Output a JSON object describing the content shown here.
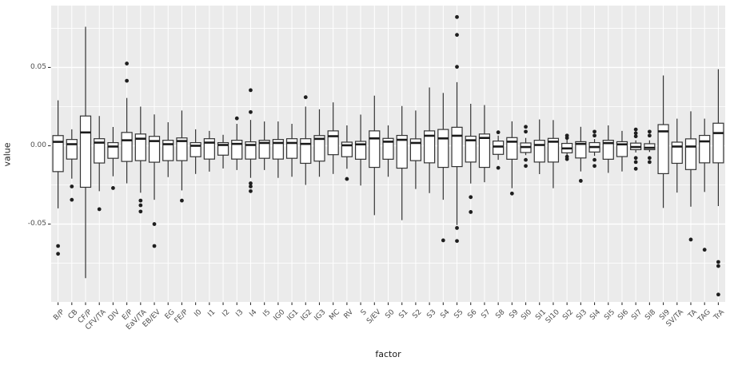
{
  "chart_data": {
    "type": "boxplot",
    "title": "",
    "xlabel": "factor",
    "ylabel": "value",
    "ylim": [
      -0.0997,
      0.0895
    ],
    "grid": true,
    "legend": "none",
    "yticks": [
      {
        "label": "0.05",
        "value": 0.05
      },
      {
        "label": "0.00",
        "value": 0.0
      },
      {
        "label": "-0.05",
        "value": -0.05
      }
    ],
    "yminor": [
      0.075,
      0.025,
      -0.025,
      -0.075
    ],
    "categories": [
      "B/P",
      "CB",
      "CF/P",
      "CFV/TA",
      "DIV",
      "E/P",
      "EaV/TA",
      "EB/EV",
      "EG",
      "FE/P",
      "I0",
      "I1",
      "I2",
      "I3",
      "I4",
      "I5",
      "IG0",
      "IG1",
      "IG2",
      "IG3",
      "MC",
      "RV",
      "S",
      "S/EV",
      "S0",
      "S1",
      "S2",
      "S3",
      "S4",
      "S5",
      "S6",
      "S7",
      "S8",
      "S9",
      "SI0",
      "SI1",
      "SI10",
      "SI2",
      "SI3",
      "SI4",
      "SI5",
      "SI6",
      "SI7",
      "SI8",
      "SI9",
      "SV/TA",
      "TA",
      "TAG",
      "TrA"
    ],
    "boxes": [
      {
        "factor": "B/P",
        "low": -0.04,
        "q1": -0.0165,
        "median": 0.0025,
        "q3": 0.0065,
        "high": 0.029,
        "outliers": [
          -0.064,
          -0.069
        ]
      },
      {
        "factor": "CB",
        "low": -0.021,
        "q1": -0.0085,
        "median": 0.001,
        "q3": 0.004,
        "high": 0.0105,
        "outliers": [
          -0.026,
          -0.0345
        ]
      },
      {
        "factor": "CF/P",
        "low": -0.0845,
        "q1": -0.0265,
        "median": 0.0085,
        "q3": 0.019,
        "high": 0.076,
        "outliers": []
      },
      {
        "factor": "CFV/TA",
        "low": -0.029,
        "q1": -0.011,
        "median": 0.002,
        "q3": 0.0045,
        "high": 0.019,
        "outliers": [
          -0.0405
        ]
      },
      {
        "factor": "DIV",
        "low": -0.0195,
        "q1": -0.008,
        "median": -0.0005,
        "q3": 0.002,
        "high": 0.012,
        "outliers": [
          -0.027
        ]
      },
      {
        "factor": "E/P",
        "low": -0.024,
        "q1": -0.01,
        "median": 0.0035,
        "q3": 0.0085,
        "high": 0.0305,
        "outliers": [
          0.0525,
          0.0415
        ]
      },
      {
        "factor": "EaV/TA",
        "low": -0.03,
        "q1": -0.0095,
        "median": 0.0045,
        "q3": 0.0075,
        "high": 0.025,
        "outliers": [
          -0.035,
          -0.038,
          -0.042
        ]
      },
      {
        "factor": "EB/EV",
        "low": -0.0345,
        "q1": -0.0105,
        "median": 0.003,
        "q3": 0.006,
        "high": 0.02,
        "outliers": [
          -0.05,
          -0.064
        ]
      },
      {
        "factor": "EG",
        "low": -0.02,
        "q1": -0.0095,
        "median": 0.001,
        "q3": 0.0035,
        "high": 0.015,
        "outliers": []
      },
      {
        "factor": "FE/P",
        "low": -0.0285,
        "q1": -0.0095,
        "median": 0.003,
        "q3": 0.005,
        "high": 0.0225,
        "outliers": [
          -0.035
        ]
      },
      {
        "factor": "I0",
        "low": -0.018,
        "q1": -0.007,
        "median": 0.0,
        "q3": 0.002,
        "high": 0.0105,
        "outliers": []
      },
      {
        "factor": "I1",
        "low": -0.0165,
        "q1": -0.0085,
        "median": 0.002,
        "q3": 0.0045,
        "high": 0.0095,
        "outliers": []
      },
      {
        "factor": "I2",
        "low": -0.0145,
        "q1": -0.006,
        "median": 0.0005,
        "q3": 0.002,
        "high": 0.007,
        "outliers": []
      },
      {
        "factor": "I3",
        "low": -0.0155,
        "q1": -0.0085,
        "median": 0.0012,
        "q3": 0.0035,
        "high": 0.014,
        "outliers": [
          0.0175
        ]
      },
      {
        "factor": "I4",
        "low": -0.0205,
        "q1": -0.0085,
        "median": 0.0005,
        "q3": 0.0025,
        "high": 0.0165,
        "outliers": [
          0.0355,
          0.0215,
          -0.024,
          -0.026,
          -0.029
        ]
      },
      {
        "factor": "I5",
        "low": -0.0155,
        "q1": -0.008,
        "median": 0.0018,
        "q3": 0.0035,
        "high": 0.0155,
        "outliers": []
      },
      {
        "factor": "IG0",
        "low": -0.0205,
        "q1": -0.0085,
        "median": 0.0018,
        "q3": 0.004,
        "high": 0.0155,
        "outliers": []
      },
      {
        "factor": "IG1",
        "low": -0.0198,
        "q1": -0.008,
        "median": 0.0018,
        "q3": 0.0045,
        "high": 0.014,
        "outliers": []
      },
      {
        "factor": "IG2",
        "low": -0.025,
        "q1": -0.0112,
        "median": 0.0012,
        "q3": 0.0045,
        "high": 0.025,
        "outliers": [
          0.031
        ]
      },
      {
        "factor": "IG3",
        "low": -0.0198,
        "q1": -0.0098,
        "median": 0.0044,
        "q3": 0.0065,
        "high": 0.0233,
        "outliers": []
      },
      {
        "factor": "MC",
        "low": -0.018,
        "q1": -0.0057,
        "median": 0.0061,
        "q3": 0.0095,
        "high": 0.0277,
        "outliers": []
      },
      {
        "factor": "RV",
        "low": -0.0147,
        "q1": -0.007,
        "median": 0.0003,
        "q3": 0.0023,
        "high": 0.013,
        "outliers": [
          -0.0212
        ]
      },
      {
        "factor": "S",
        "low": -0.0254,
        "q1": -0.0086,
        "median": 0.0009,
        "q3": 0.0028,
        "high": 0.0199,
        "outliers": []
      },
      {
        "factor": "S/EV",
        "low": -0.0443,
        "q1": -0.0138,
        "median": 0.0047,
        "q3": 0.0095,
        "high": 0.032,
        "outliers": []
      },
      {
        "factor": "S0",
        "low": -0.0198,
        "q1": -0.0086,
        "median": 0.0026,
        "q3": 0.0047,
        "high": 0.013,
        "outliers": []
      },
      {
        "factor": "S1",
        "low": -0.0475,
        "q1": -0.0143,
        "median": 0.0038,
        "q3": 0.0066,
        "high": 0.0254,
        "outliers": []
      },
      {
        "factor": "S2",
        "low": -0.0276,
        "q1": -0.0095,
        "median": 0.0018,
        "q3": 0.0044,
        "high": 0.0225,
        "outliers": []
      },
      {
        "factor": "S3",
        "low": -0.0302,
        "q1": -0.0109,
        "median": 0.0064,
        "q3": 0.0095,
        "high": 0.0372,
        "outliers": []
      },
      {
        "factor": "S4",
        "low": -0.0345,
        "q1": -0.0138,
        "median": 0.0047,
        "q3": 0.0104,
        "high": 0.0337,
        "outliers": [
          -0.0604
        ]
      },
      {
        "factor": "S5",
        "low": -0.0506,
        "q1": -0.0133,
        "median": 0.0064,
        "q3": 0.0118,
        "high": 0.0406,
        "outliers": [
          0.0822,
          0.0708,
          0.0504,
          -0.0525,
          -0.0608
        ]
      },
      {
        "factor": "S6",
        "low": -0.0241,
        "q1": -0.0104,
        "median": 0.0035,
        "q3": 0.0061,
        "high": 0.0268,
        "outliers": [
          -0.0328,
          -0.0423
        ]
      },
      {
        "factor": "S7",
        "low": -0.0233,
        "q1": -0.0138,
        "median": 0.005,
        "q3": 0.0075,
        "high": 0.026,
        "outliers": []
      },
      {
        "factor": "S8",
        "low": -0.009,
        "q1": -0.0055,
        "median": -0.0005,
        "q3": 0.003,
        "high": 0.0065,
        "outliers": [
          0.0086,
          -0.0141
        ]
      },
      {
        "factor": "S9",
        "low": -0.0271,
        "q1": -0.0086,
        "median": 0.0026,
        "q3": 0.0052,
        "high": 0.0156,
        "outliers": [
          -0.0305
        ]
      },
      {
        "factor": "SI0",
        "low": -0.006,
        "q1": -0.0043,
        "median": -0.0008,
        "q3": 0.0018,
        "high": 0.005,
        "outliers": [
          0.0121,
          0.009,
          -0.009,
          -0.0129
        ]
      },
      {
        "factor": "SI1",
        "low": -0.0181,
        "q1": -0.0104,
        "median": 0.0005,
        "q3": 0.0035,
        "high": 0.0168,
        "outliers": []
      },
      {
        "factor": "SI10",
        "low": -0.0271,
        "q1": -0.0104,
        "median": 0.0026,
        "q3": 0.0047,
        "high": 0.0164,
        "outliers": []
      },
      {
        "factor": "SI2",
        "low": -0.006,
        "q1": -0.0045,
        "median": -0.0017,
        "q3": 0.0015,
        "high": 0.004,
        "outliers": [
          0.0065,
          0.005,
          -0.007,
          -0.0085
        ]
      },
      {
        "factor": "SI3",
        "low": -0.0164,
        "q1": -0.0078,
        "median": 0.0012,
        "q3": 0.0026,
        "high": 0.0121,
        "outliers": [
          -0.0224
        ]
      },
      {
        "factor": "SI4",
        "low": -0.0065,
        "q1": -0.004,
        "median": -0.0008,
        "q3": 0.002,
        "high": 0.0043,
        "outliers": [
          0.009,
          0.0065,
          -0.009,
          -0.0129
        ]
      },
      {
        "factor": "SI5",
        "low": -0.0173,
        "q1": -0.0086,
        "median": 0.0017,
        "q3": 0.0035,
        "high": 0.013,
        "outliers": []
      },
      {
        "factor": "SI6",
        "low": -0.0164,
        "q1": -0.0069,
        "median": 0.0009,
        "q3": 0.0026,
        "high": 0.0095,
        "outliers": []
      },
      {
        "factor": "SI7",
        "low": -0.0043,
        "q1": -0.0025,
        "median": -0.0008,
        "q3": 0.0017,
        "high": 0.0035,
        "outliers": [
          0.0104,
          0.008,
          0.006,
          -0.0078,
          -0.0104,
          -0.0147
        ]
      },
      {
        "factor": "SI8",
        "low": -0.004,
        "q1": -0.0025,
        "median": -0.0013,
        "q3": 0.0013,
        "high": 0.0035,
        "outliers": [
          0.009,
          0.0065,
          -0.0078,
          -0.0104
        ]
      },
      {
        "factor": "SI9",
        "low": -0.0397,
        "q1": -0.0178,
        "median": 0.0092,
        "q3": 0.0135,
        "high": 0.0449,
        "outliers": []
      },
      {
        "factor": "SV/TA",
        "low": -0.0299,
        "q1": -0.0112,
        "median": -0.0005,
        "q3": 0.0023,
        "high": 0.0173,
        "outliers": []
      },
      {
        "factor": "TA",
        "low": -0.0389,
        "q1": -0.0152,
        "median": -0.0005,
        "q3": 0.0044,
        "high": 0.022,
        "outliers": [
          -0.0599
        ]
      },
      {
        "factor": "TAG",
        "low": -0.0295,
        "q1": -0.0109,
        "median": 0.0028,
        "q3": 0.0066,
        "high": 0.0173,
        "outliers": [
          -0.0664
        ]
      },
      {
        "factor": "TrA",
        "low": -0.0385,
        "q1": -0.0109,
        "median": 0.0081,
        "q3": 0.0144,
        "high": 0.0489,
        "outliers": [
          -0.0742,
          -0.0768,
          -0.095
        ]
      }
    ],
    "style": {
      "panel_bg": "#ebebeb",
      "grid_color": "#ffffff",
      "box_fill": "#ffffff",
      "box_stroke": "#333333",
      "median_color": "#1a1a1a",
      "outlier_color": "#1f1f1f",
      "tick_color": "#333333",
      "axis_text_color": "#4d4d4d",
      "axis_title_color": "#1a1a1a"
    }
  }
}
